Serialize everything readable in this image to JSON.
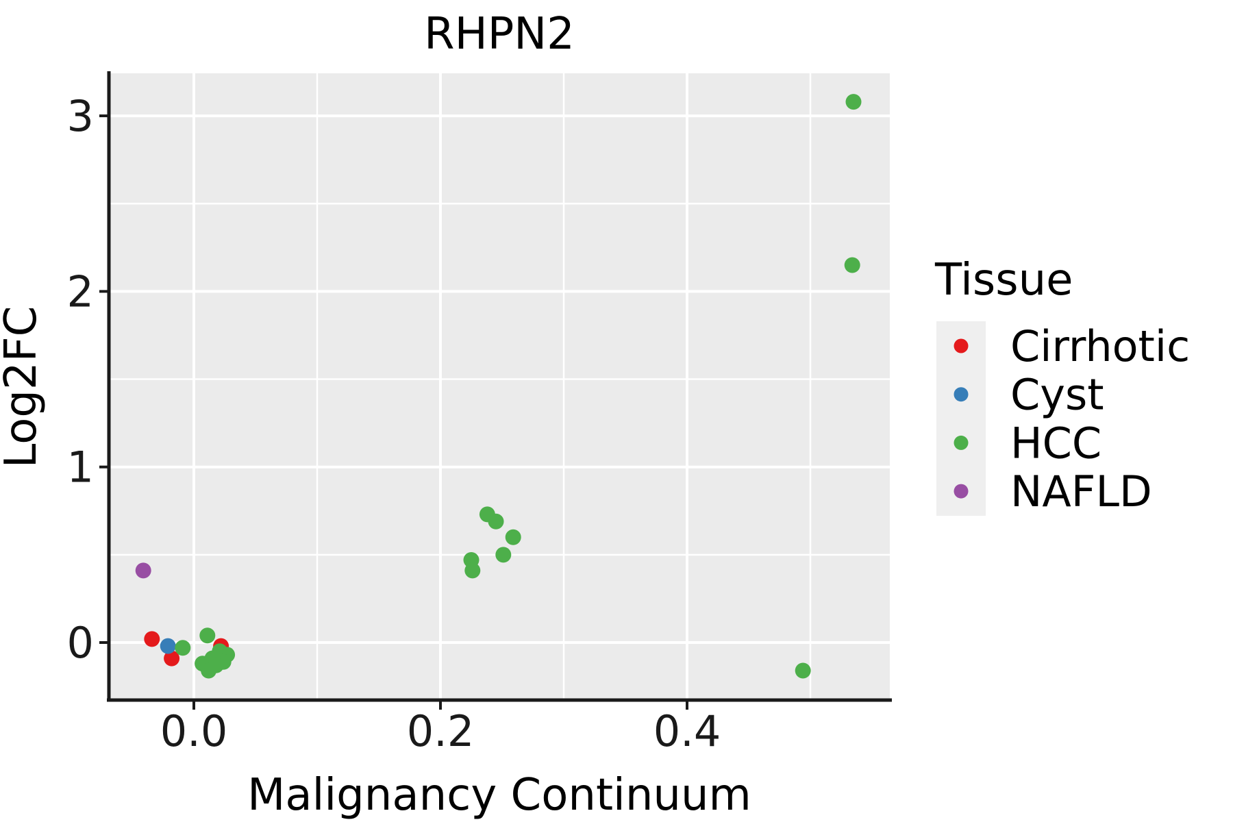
{
  "figure": {
    "title": "RHPN2"
  },
  "chart_data": {
    "type": "scatter",
    "title": "RHPN2",
    "xlabel": "Malignancy Continuum",
    "ylabel": "Log2FC",
    "xlim": [
      -0.069,
      0.564
    ],
    "ylim": [
      -0.33,
      3.25
    ],
    "grid": true,
    "panel_bg": "#EBEBEB",
    "grid_color": "#FFFFFF",
    "axis_color": "#1a1a1a",
    "x_ticks": {
      "values": [
        0.0,
        0.2,
        0.4
      ],
      "labels": [
        "0.0",
        "0.2",
        "0.4"
      ]
    },
    "y_ticks": {
      "values": [
        0,
        1,
        2,
        3
      ],
      "labels": [
        "0",
        "1",
        "2",
        "3"
      ]
    },
    "x_minor_ticks": [
      0.1,
      0.3,
      0.5
    ],
    "y_minor_ticks": [
      0.5,
      1.5,
      2.5
    ],
    "legend": {
      "title": "Tissue",
      "position": "right",
      "key_bg": "#EFEFEF"
    },
    "series": [
      {
        "name": "Cirrhotic",
        "color": "#E41A1C",
        "points": [
          [
            -0.034,
            0.02
          ],
          [
            -0.018,
            -0.09
          ],
          [
            0.022,
            -0.02
          ]
        ]
      },
      {
        "name": "Cyst",
        "color": "#377EB8",
        "points": [
          [
            -0.021,
            -0.02
          ]
        ]
      },
      {
        "name": "HCC",
        "color": "#4DAF4A",
        "points": [
          [
            -0.009,
            -0.03
          ],
          [
            0.021,
            -0.05
          ],
          [
            0.027,
            -0.07
          ],
          [
            0.024,
            -0.11
          ],
          [
            0.015,
            -0.09
          ],
          [
            0.007,
            -0.12
          ],
          [
            0.018,
            -0.13
          ],
          [
            0.012,
            -0.16
          ],
          [
            0.011,
            0.04
          ],
          [
            0.238,
            0.73
          ],
          [
            0.245,
            0.69
          ],
          [
            0.259,
            0.6
          ],
          [
            0.251,
            0.5
          ],
          [
            0.225,
            0.47
          ],
          [
            0.226,
            0.41
          ],
          [
            0.494,
            -0.16
          ],
          [
            0.535,
            3.08
          ],
          [
            0.534,
            2.15
          ]
        ]
      },
      {
        "name": "NAFLD",
        "color": "#984EA3",
        "points": [
          [
            -0.041,
            0.41
          ]
        ]
      }
    ]
  }
}
